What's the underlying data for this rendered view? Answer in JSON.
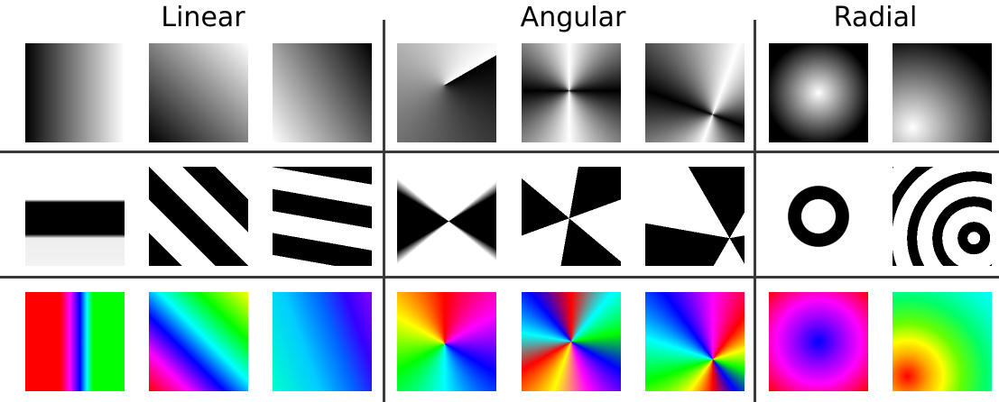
{
  "headings": {
    "linear": "Linear",
    "angular": "Angular",
    "radial": "Radial"
  }
}
